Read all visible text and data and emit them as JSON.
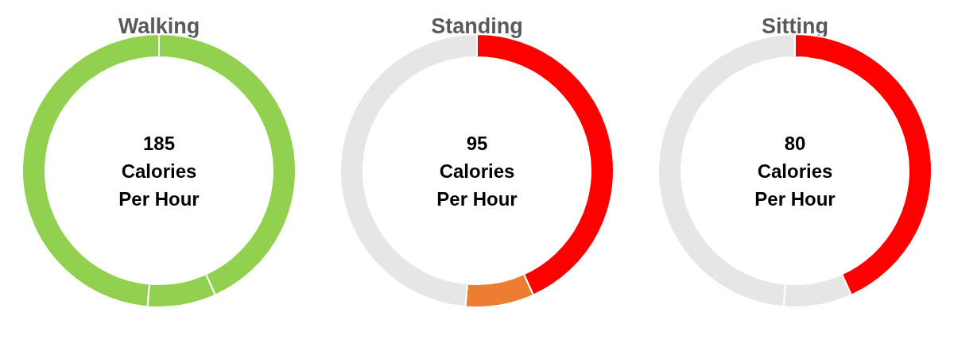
{
  "chart_data": [
    {
      "type": "donut",
      "title": "Walking",
      "categories": [
        null,
        null,
        null
      ],
      "values": [
        43.24,
        8.11,
        48.65
      ],
      "colors": [
        "#92d050",
        "#92d050",
        "#92d050"
      ],
      "annotations": [
        "185",
        "Calories",
        "Per Hour"
      ]
    },
    {
      "type": "donut",
      "title": "Standing",
      "categories": [
        null,
        null,
        null
      ],
      "values": [
        43.24,
        8.11,
        48.65
      ],
      "colors": [
        "#ff0000",
        "#ed7d31",
        "#e7e6e6"
      ],
      "annotations": [
        "95",
        "Calories",
        "Per Hour"
      ]
    },
    {
      "type": "donut",
      "title": "Sitting",
      "categories": [
        null,
        null,
        null
      ],
      "values": [
        43.24,
        8.11,
        48.65
      ],
      "colors": [
        "#ff0000",
        "#e7e6e6",
        "#e7e6e6"
      ],
      "annotations": [
        "80",
        "Calories",
        "Per Hour"
      ]
    }
  ]
}
